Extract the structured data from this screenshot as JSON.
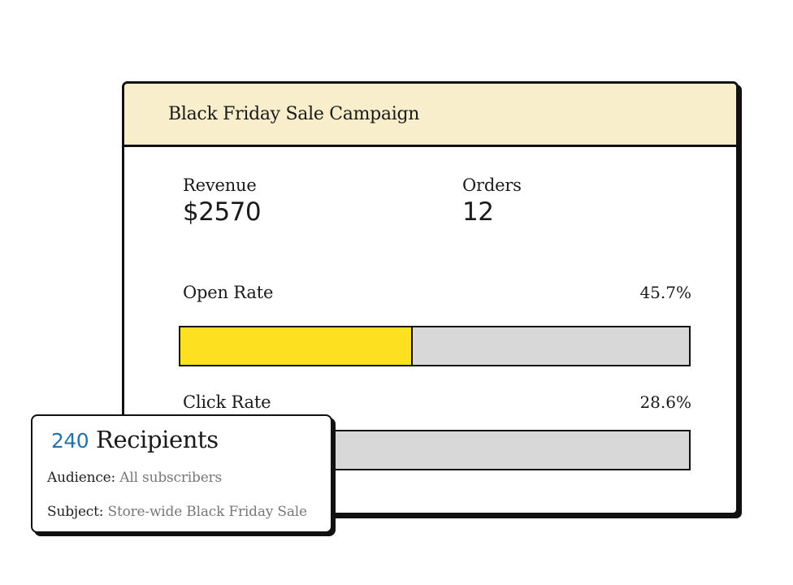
{
  "campaign": {
    "title": "Black Friday Sale Campaign",
    "stats": {
      "revenue_label": "Revenue",
      "revenue_value": "$2570",
      "orders_label": "Orders",
      "orders_value": "12"
    },
    "rates": {
      "open": {
        "label": "Open Rate",
        "value_text": "45.7%",
        "fraction": 0.457
      },
      "click": {
        "label": "Click Rate",
        "value_text": "28.6%",
        "fraction": 0.286
      }
    },
    "colors": {
      "header_bg": "#f9eecb",
      "bar_fill": "#fde01f",
      "bar_track": "#d8d8d8",
      "accent_number": "#2472a8"
    }
  },
  "recipients": {
    "count": "240",
    "label": "Recipients",
    "audience_key": "Audience:",
    "audience_value": "All subscribers",
    "subject_key": "Subject:",
    "subject_value": "Store-wide Black Friday Sale"
  }
}
